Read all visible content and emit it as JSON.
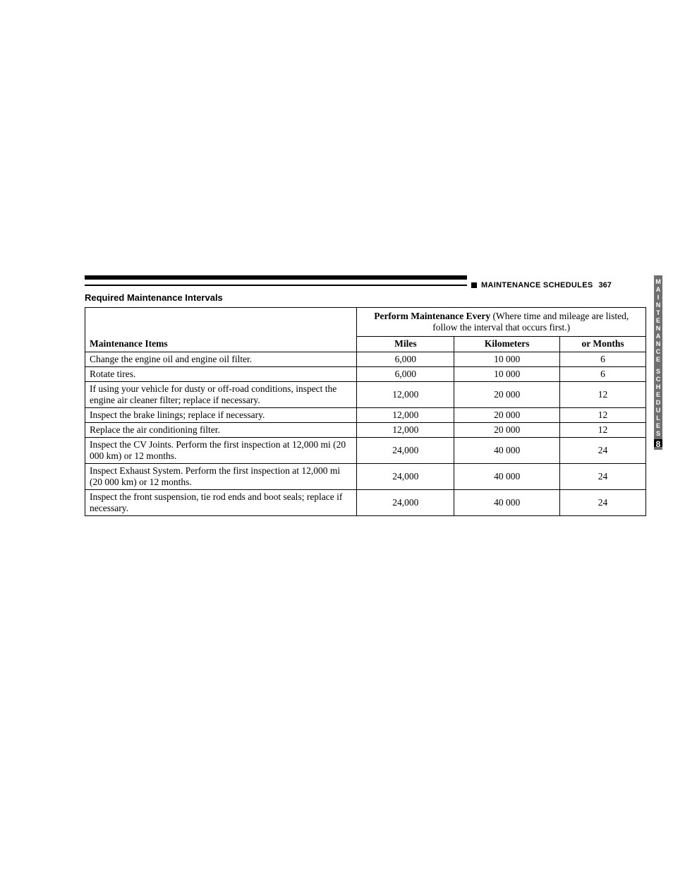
{
  "header": {
    "section_name": "MAINTENANCE SCHEDULES",
    "page_number": "367"
  },
  "heading": "Required Maintenance Intervals",
  "table": {
    "top_header_bold": "Perform Maintenance Every",
    "top_header_rest": " (Where time and mileage are listed, follow the interval that occurs first.)",
    "col_items": "Maintenance Items",
    "col_miles": "Miles",
    "col_km": "Kilometers",
    "col_months": "or Months",
    "rows": [
      {
        "item": "Change the engine oil and engine oil filter.",
        "miles": "6,000",
        "km": "10 000",
        "months": "6"
      },
      {
        "item": "Rotate tires.",
        "miles": "6,000",
        "km": "10 000",
        "months": "6"
      },
      {
        "item": "If using your vehicle for dusty or off-road conditions, inspect the engine air cleaner filter; replace if necessary.",
        "miles": "12,000",
        "km": "20 000",
        "months": "12"
      },
      {
        "item": "Inspect the brake linings; replace if necessary.",
        "miles": "12,000",
        "km": "20 000",
        "months": "12"
      },
      {
        "item": "Replace the air conditioning filter.",
        "miles": "12,000",
        "km": "20 000",
        "months": "12"
      },
      {
        "item": "Inspect the CV Joints. Perform the first inspection at 12,000 mi (20 000 km) or 12 months.",
        "miles": "24,000",
        "km": "40 000",
        "months": "24"
      },
      {
        "item": "Inspect Exhaust System. Perform the first inspection at 12,000 mi (20 000 km) or 12 months.",
        "miles": "24,000",
        "km": "40 000",
        "months": "24"
      },
      {
        "item": "Inspect the front suspension, tie rod ends and boot seals; replace if necessary.",
        "miles": "24,000",
        "km": "40 000",
        "months": "24"
      }
    ]
  },
  "side_tab": {
    "line1": "MAINTENANCE",
    "line2": "SCHEDULES",
    "chapter": "8"
  },
  "colors": {
    "background": "#ffffff",
    "text": "#000000",
    "tab_bg": "#6f6f6f",
    "tab_text": "#ffffff",
    "chapter_bg": "#000000"
  }
}
